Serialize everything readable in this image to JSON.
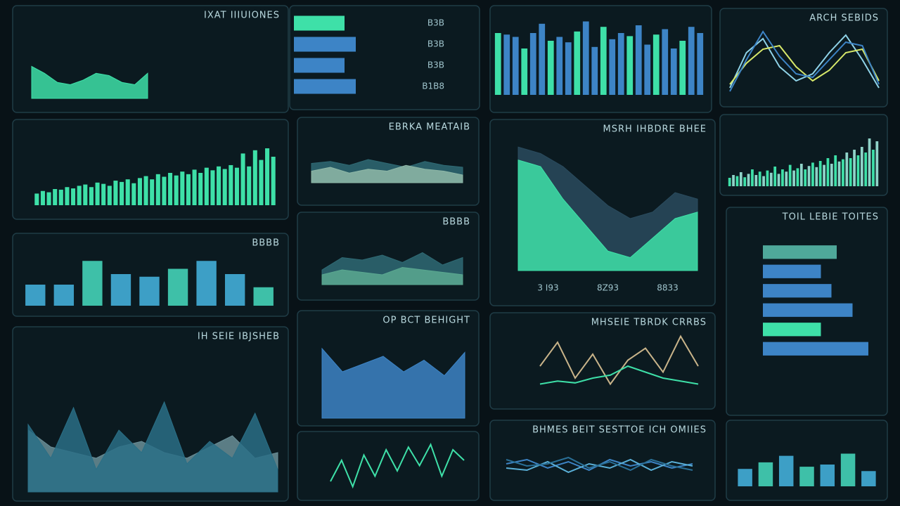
{
  "panels": [
    {
      "type": "area",
      "title": "IXAT IIIUIONES",
      "ylim": [
        0,
        100
      ],
      "series": [
        {
          "color": "#3ee0a8",
          "values": [
            70,
            55,
            35,
            30,
            40,
            55,
            50,
            35,
            30,
            55
          ]
        }
      ]
    },
    {
      "type": "hbar",
      "labels": [
        "B3B",
        "B3B",
        "B3B",
        "B1B8"
      ],
      "xlim": [
        0,
        100
      ],
      "colors": [
        "#3ee0a8",
        "#3d84c6",
        "#3d84c6",
        "#3d84c6"
      ],
      "values": [
        45,
        55,
        45,
        55
      ]
    },
    {
      "type": "bar",
      "ylim": [
        0,
        100
      ],
      "colors": [
        "#3ee0a8",
        "#3d84c6",
        "#3d84c6"
      ],
      "values": [
        80,
        78,
        75,
        60,
        80,
        92,
        70,
        75,
        68,
        82,
        95,
        62,
        88,
        72,
        80,
        76,
        90,
        65,
        78,
        85,
        60,
        70,
        88,
        80
      ]
    },
    {
      "type": "line",
      "title": "ARCH SEBIDS",
      "ylim": [
        0,
        100
      ],
      "series": [
        {
          "color": "#8fd3e8",
          "values": [
            10,
            60,
            80,
            40,
            20,
            30,
            60,
            85,
            50,
            10
          ]
        },
        {
          "color": "#d7e86a",
          "values": [
            15,
            45,
            65,
            70,
            40,
            20,
            35,
            60,
            65,
            20
          ]
        },
        {
          "color": "#3d84c6",
          "values": [
            5,
            50,
            90,
            55,
            30,
            25,
            50,
            75,
            70,
            15
          ]
        }
      ]
    },
    {
      "type": "bar",
      "ylim": [
        0,
        100
      ],
      "colors": [
        "#3ee0a8"
      ],
      "values": [
        18,
        22,
        20,
        25,
        24,
        28,
        26,
        30,
        32,
        28,
        35,
        33,
        30,
        38,
        36,
        40,
        34,
        42,
        45,
        40,
        48,
        44,
        50,
        46,
        52,
        48,
        55,
        50,
        58,
        54,
        60,
        56,
        62,
        58,
        80,
        60,
        85,
        70,
        88,
        75
      ]
    },
    {
      "type": "area",
      "title": "EBRKA MEATAIB",
      "ylim": [
        0,
        100
      ],
      "series": [
        {
          "color": "#2f6a74",
          "values": [
            50,
            55,
            45,
            60,
            50,
            40,
            55,
            45,
            40
          ]
        },
        {
          "color": "#8fb8a8",
          "values": [
            30,
            40,
            25,
            35,
            30,
            45,
            35,
            30,
            20
          ]
        }
      ]
    },
    {
      "type": "area",
      "title": "BBBB",
      "ylim": [
        0,
        100
      ],
      "series": [
        {
          "color": "#2f6a74",
          "values": [
            30,
            55,
            50,
            60,
            45,
            65,
            40,
            55
          ]
        },
        {
          "color": "#5aa890",
          "values": [
            20,
            30,
            25,
            20,
            35,
            30,
            25,
            20
          ]
        }
      ]
    },
    {
      "type": "area",
      "title": "MSRH IHBDRE BHEE",
      "labels": [
        "3 I93",
        "8Z93",
        "8833"
      ],
      "ylim": [
        0,
        100
      ],
      "series": [
        {
          "color": "#2a4b5e",
          "values": [
            95,
            90,
            80,
            65,
            50,
            40,
            45,
            60,
            55
          ]
        },
        {
          "color": "#3ee0a8",
          "values": [
            85,
            80,
            55,
            35,
            15,
            10,
            25,
            40,
            45
          ]
        }
      ]
    },
    {
      "type": "bar",
      "ylim": [
        0,
        100
      ],
      "colors": [
        "#3ee0a8",
        "#8fd3c8"
      ],
      "values": [
        15,
        20,
        18,
        25,
        16,
        22,
        30,
        20,
        26,
        18,
        28,
        24,
        35,
        22,
        30,
        26,
        38,
        28,
        32,
        40,
        30,
        36,
        42,
        34,
        45,
        38,
        50,
        40,
        55,
        44,
        48,
        60,
        50,
        65,
        55,
        70,
        60,
        85,
        65,
        80
      ]
    },
    {
      "type": "bar",
      "title": "BBBB",
      "ylim": [
        0,
        100
      ],
      "colors": [
        "#3d9fc6",
        "#3d9fc6",
        "#3ec0a8"
      ],
      "values": [
        40,
        40,
        85,
        60,
        55,
        70,
        85,
        60,
        35
      ]
    },
    {
      "type": "hbar",
      "title": "TOIL LEBIE TOITES",
      "xlim": [
        0,
        100
      ],
      "colors": [
        "#4fa89a",
        "#3d84c6",
        "#3d84c6",
        "#3d84c6",
        "#3ee0a8",
        "#3d84c6"
      ],
      "values": [
        70,
        55,
        65,
        85,
        55,
        100
      ]
    },
    {
      "type": "area",
      "title": "IH SEIE IBJSHEB",
      "ylim": [
        0,
        100
      ],
      "series": [
        {
          "color": "#6a8f98",
          "values": [
            55,
            40,
            35,
            30,
            40,
            45,
            35,
            30,
            40,
            50,
            30,
            35
          ]
        },
        {
          "color": "#2a6f86",
          "values": [
            60,
            30,
            75,
            20,
            55,
            35,
            80,
            25,
            45,
            30,
            70,
            20
          ]
        }
      ]
    },
    {
      "type": "area",
      "title": "OP BCT BEHIGHT",
      "ylim": [
        0,
        100
      ],
      "series": [
        {
          "color": "#3d84c6",
          "values": [
            90,
            60,
            70,
            80,
            60,
            75,
            55,
            85
          ]
        }
      ]
    },
    {
      "type": "line",
      "ylim": [
        0,
        100
      ],
      "series": [
        {
          "color": "#3ee0a8",
          "values": [
            20,
            60,
            10,
            70,
            30,
            80,
            40,
            85,
            50,
            90,
            30,
            80,
            60
          ]
        }
      ]
    },
    {
      "type": "line",
      "title": "MHSEIE TBRDK CRRBS",
      "ylim": [
        0,
        100
      ],
      "series": [
        {
          "color": "#c9b48a",
          "values": [
            40,
            80,
            20,
            60,
            10,
            50,
            70,
            30,
            90,
            40
          ]
        },
        {
          "color": "#3ee0a8",
          "values": [
            10,
            15,
            12,
            20,
            25,
            40,
            30,
            20,
            15,
            10
          ]
        }
      ]
    },
    {
      "type": "line",
      "title": "BHMES BEIT SESTTOE ICH OMIIES",
      "ylim": [
        0,
        100
      ],
      "series": [
        {
          "color": "#3d84c6",
          "values": [
            50,
            60,
            40,
            55,
            35,
            60,
            45,
            55,
            40,
            50
          ]
        },
        {
          "color": "#5ab0d8",
          "values": [
            40,
            35,
            55,
            30,
            50,
            40,
            60,
            35,
            55,
            45
          ]
        },
        {
          "color": "#2a6f96",
          "values": [
            60,
            45,
            50,
            65,
            40,
            55,
            35,
            60,
            45,
            35
          ]
        }
      ]
    },
    {
      "type": "bar",
      "ylim": [
        0,
        100
      ],
      "colors": [
        "#3d9fc6",
        "#3ec0a8"
      ],
      "values": [
        40,
        55,
        70,
        45,
        50,
        75,
        35
      ]
    }
  ]
}
